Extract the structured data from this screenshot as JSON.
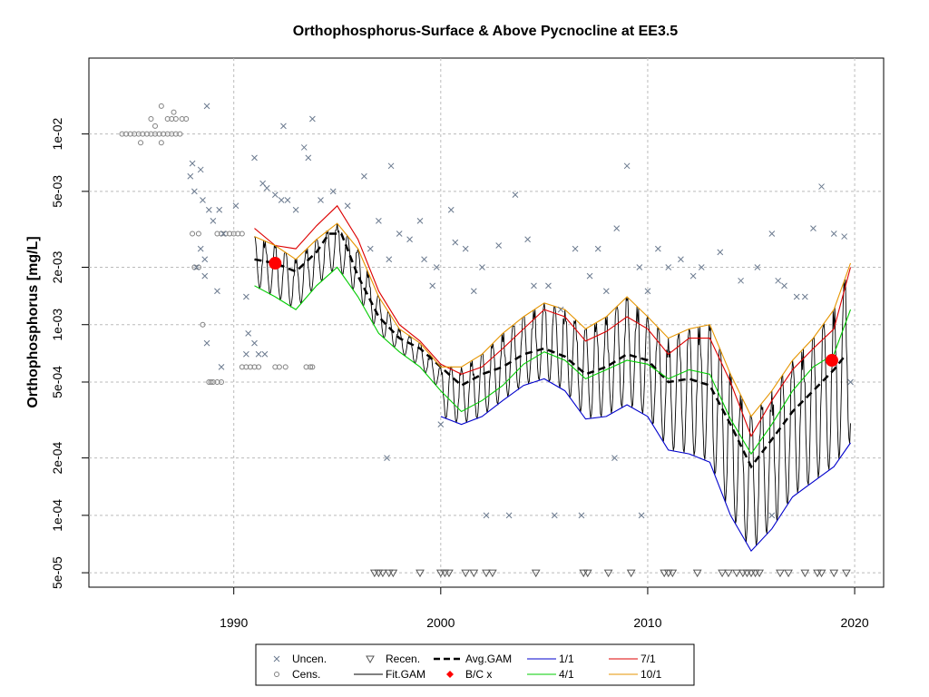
{
  "chart_data": {
    "type": "scatter",
    "title": "Orthophosphorus-Surface & Above Pycnocline at EE3.5",
    "ylabel": "Orthophosphorus [mg/L]",
    "xlabel": "",
    "x_ticks": [
      "1990",
      "2000",
      "2010",
      "2020"
    ],
    "y_ticks": [
      "5e-05",
      "1e-04",
      "2e-04",
      "5e-04",
      "1e-03",
      "2e-03",
      "5e-03",
      "1e-02"
    ],
    "y_scale": "log",
    "xlim": [
      1983.0,
      2021.4
    ],
    "ylim": [
      4.2e-05,
      0.025
    ],
    "grid": true,
    "legend_position": "bottom",
    "legend": [
      {
        "label": "Uncen.",
        "symbol": "x",
        "color": "#6b7a8f"
      },
      {
        "label": "Cens.",
        "symbol": "circle",
        "color": "#808080"
      },
      {
        "label": "Recen.",
        "symbol": "triangle-down",
        "color": "#555555"
      },
      {
        "label": "Fit.GAM",
        "symbol": "line",
        "color": "#000000"
      },
      {
        "label": "Avg.GAM",
        "symbol": "dashed-line",
        "color": "#000000"
      },
      {
        "label": "B/C x",
        "symbol": "diamond",
        "color": "#ff0000"
      },
      {
        "label": "1/1",
        "symbol": "line",
        "color": "#0000cc"
      },
      {
        "label": "4/1",
        "symbol": "line",
        "color": "#00cc00"
      },
      {
        "label": "7/1",
        "symbol": "line",
        "color": "#dd0000"
      },
      {
        "label": "10/1",
        "symbol": "line",
        "color": "#e69500"
      }
    ],
    "bc_points": [
      {
        "x": 1992.0,
        "y": 0.0021
      },
      {
        "x": 2018.9,
        "y": 0.00065
      }
    ],
    "censored_points": [
      [
        1984.6,
        0.01
      ],
      [
        1984.8,
        0.01
      ],
      [
        1985.0,
        0.01
      ],
      [
        1985.2,
        0.01
      ],
      [
        1985.4,
        0.01
      ],
      [
        1985.6,
        0.01
      ],
      [
        1985.8,
        0.01
      ],
      [
        1986.0,
        0.01
      ],
      [
        1986.2,
        0.01
      ],
      [
        1986.4,
        0.01
      ],
      [
        1986.6,
        0.01
      ],
      [
        1986.8,
        0.01
      ],
      [
        1987.0,
        0.01
      ],
      [
        1987.2,
        0.01
      ],
      [
        1987.4,
        0.01
      ],
      [
        1985.5,
        0.009
      ],
      [
        1986.5,
        0.009
      ],
      [
        1986.2,
        0.011
      ],
      [
        1986.8,
        0.012
      ],
      [
        1987.0,
        0.012
      ],
      [
        1987.2,
        0.012
      ],
      [
        1987.5,
        0.012
      ],
      [
        1987.7,
        0.012
      ],
      [
        1986.0,
        0.012
      ],
      [
        1986.5,
        0.014
      ],
      [
        1987.1,
        0.013
      ],
      [
        1988.0,
        0.003
      ],
      [
        1988.3,
        0.003
      ],
      [
        1989.2,
        0.003
      ],
      [
        1989.4,
        0.003
      ],
      [
        1989.6,
        0.003
      ],
      [
        1989.8,
        0.003
      ],
      [
        1990.0,
        0.003
      ],
      [
        1990.2,
        0.003
      ],
      [
        1990.4,
        0.003
      ],
      [
        1988.1,
        0.002
      ],
      [
        1988.3,
        0.002
      ],
      [
        1988.5,
        0.001
      ],
      [
        1988.8,
        0.0005
      ],
      [
        1989.0,
        0.0005
      ],
      [
        1989.2,
        0.0005
      ],
      [
        1989.4,
        0.0005
      ],
      [
        1988.9,
        0.0005
      ],
      [
        1990.4,
        0.0006
      ],
      [
        1990.6,
        0.0006
      ],
      [
        1990.8,
        0.0006
      ],
      [
        1991.0,
        0.0006
      ],
      [
        1991.2,
        0.0006
      ],
      [
        1992.0,
        0.0006
      ],
      [
        1992.2,
        0.0006
      ],
      [
        1992.5,
        0.0006
      ],
      [
        1993.5,
        0.0006
      ],
      [
        1993.7,
        0.0006
      ],
      [
        1993.8,
        0.0006
      ]
    ],
    "uncensored_points": [
      [
        1988.7,
        0.014
      ],
      [
        1993.8,
        0.012
      ],
      [
        1992.4,
        0.011
      ],
      [
        1988.0,
        0.007
      ],
      [
        1988.4,
        0.0065
      ],
      [
        1991.0,
        0.0075
      ],
      [
        1991.4,
        0.0055
      ],
      [
        1991.6,
        0.0052
      ],
      [
        1992.0,
        0.0048
      ],
      [
        1992.3,
        0.0045
      ],
      [
        1992.6,
        0.0045
      ],
      [
        1993.0,
        0.004
      ],
      [
        1993.4,
        0.0085
      ],
      [
        1993.6,
        0.0075
      ],
      [
        1994.2,
        0.0045
      ],
      [
        1997.6,
        0.0068
      ],
      [
        1994.8,
        0.005
      ],
      [
        1995.5,
        0.0042
      ],
      [
        1996.3,
        0.006
      ],
      [
        1987.9,
        0.006
      ],
      [
        1988.1,
        0.005
      ],
      [
        1988.5,
        0.0045
      ],
      [
        1988.8,
        0.004
      ],
      [
        1989.0,
        0.0035
      ],
      [
        1989.3,
        0.004
      ],
      [
        1989.5,
        0.003
      ],
      [
        1990.1,
        0.0042
      ],
      [
        1988.4,
        0.0025
      ],
      [
        1988.6,
        0.0022
      ],
      [
        1988.2,
        0.002
      ],
      [
        1988.6,
        0.0018
      ],
      [
        1989.2,
        0.0015
      ],
      [
        1989.4,
        0.0006
      ],
      [
        1988.7,
        0.0008
      ],
      [
        1990.6,
        0.0014
      ],
      [
        1990.7,
        0.0009
      ],
      [
        1991.0,
        0.0008
      ],
      [
        1991.2,
        0.0007
      ],
      [
        1991.5,
        0.0007
      ],
      [
        1990.6,
        0.0007
      ],
      [
        1996.6,
        0.0025
      ],
      [
        1997.0,
        0.0035
      ],
      [
        1997.5,
        0.0022
      ],
      [
        1998.0,
        0.003
      ],
      [
        1998.5,
        0.0028
      ],
      [
        1999.0,
        0.0035
      ],
      [
        1999.2,
        0.0022
      ],
      [
        1999.6,
        0.0016
      ],
      [
        1999.8,
        0.002
      ],
      [
        2000.5,
        0.004
      ],
      [
        2000.7,
        0.0027
      ],
      [
        2001.2,
        0.0025
      ],
      [
        2001.6,
        0.0015
      ],
      [
        2002.0,
        0.002
      ],
      [
        2002.8,
        0.0026
      ],
      [
        2003.6,
        0.0048
      ],
      [
        2004.2,
        0.0028
      ],
      [
        2004.5,
        0.0016
      ],
      [
        2005.2,
        0.0016
      ],
      [
        2005.8,
        0.0012
      ],
      [
        2006.5,
        0.0025
      ],
      [
        2007.2,
        0.0018
      ],
      [
        2007.6,
        0.0025
      ],
      [
        2008.0,
        0.0015
      ],
      [
        2008.5,
        0.0032
      ],
      [
        2009.0,
        0.0068
      ],
      [
        2009.6,
        0.002
      ],
      [
        2010.0,
        0.0015
      ],
      [
        2010.5,
        0.0025
      ],
      [
        2011.0,
        0.002
      ],
      [
        2011.6,
        0.0022
      ],
      [
        2012.2,
        0.0018
      ],
      [
        2012.6,
        0.002
      ],
      [
        2013.5,
        0.0024
      ],
      [
        2014.5,
        0.0017
      ],
      [
        2015.3,
        0.002
      ],
      [
        2016.0,
        0.003
      ],
      [
        2016.3,
        0.0017
      ],
      [
        2016.6,
        0.0016
      ],
      [
        2017.2,
        0.0014
      ],
      [
        2017.6,
        0.0014
      ],
      [
        2018.0,
        0.0032
      ],
      [
        2018.4,
        0.0053
      ],
      [
        2019.0,
        0.003
      ],
      [
        2019.5,
        0.0029
      ],
      [
        2019.8,
        0.0005
      ],
      [
        1997.4,
        0.0002
      ],
      [
        2000.0,
        0.0003
      ],
      [
        2002.2,
        0.0001
      ],
      [
        2003.3,
        0.0001
      ],
      [
        2005.5,
        0.0001
      ],
      [
        2006.8,
        0.0001
      ],
      [
        2008.4,
        0.0002
      ],
      [
        2009.7,
        0.0001
      ],
      [
        2016.0,
        0.0001
      ]
    ],
    "recensored_points": [
      [
        1996.8,
        5e-05
      ],
      [
        1997.0,
        5e-05
      ],
      [
        1997.2,
        5e-05
      ],
      [
        1997.5,
        5e-05
      ],
      [
        1997.7,
        5e-05
      ],
      [
        1999.0,
        5e-05
      ],
      [
        2000.0,
        5e-05
      ],
      [
        2000.2,
        5e-05
      ],
      [
        2000.4,
        5e-05
      ],
      [
        2001.2,
        5e-05
      ],
      [
        2001.6,
        5e-05
      ],
      [
        2002.2,
        5e-05
      ],
      [
        2002.5,
        5e-05
      ],
      [
        2004.6,
        5e-05
      ],
      [
        2006.9,
        5e-05
      ],
      [
        2007.1,
        5e-05
      ],
      [
        2008.1,
        5e-05
      ],
      [
        2009.2,
        5e-05
      ],
      [
        2010.8,
        5e-05
      ],
      [
        2011.0,
        5e-05
      ],
      [
        2011.2,
        5e-05
      ],
      [
        2012.4,
        5e-05
      ],
      [
        2013.6,
        5e-05
      ],
      [
        2013.9,
        5e-05
      ],
      [
        2014.3,
        5e-05
      ],
      [
        2014.6,
        5e-05
      ],
      [
        2014.8,
        5e-05
      ],
      [
        2015.0,
        5e-05
      ],
      [
        2015.2,
        5e-05
      ],
      [
        2015.4,
        5e-05
      ],
      [
        2016.4,
        5e-05
      ],
      [
        2016.8,
        5e-05
      ],
      [
        2017.6,
        5e-05
      ],
      [
        2018.2,
        5e-05
      ],
      [
        2018.4,
        5e-05
      ],
      [
        2019.0,
        5e-05
      ],
      [
        2019.6,
        5e-05
      ]
    ],
    "series": [
      {
        "name": "Avg.GAM",
        "color": "#000000",
        "dash": true,
        "x": [
          1991.0,
          1992.0,
          1993.0,
          1994.0,
          1994.6,
          1995.2,
          1996.0,
          1997.0,
          1998.0,
          1999.0,
          2000.0,
          2001.0,
          2002.0,
          2003.0,
          2004.0,
          2005.0,
          2006.0,
          2007.0,
          2008.0,
          2009.0,
          2010.0,
          2011.0,
          2012.0,
          2013.0,
          2014.0,
          2015.0,
          2016.0,
          2017.0,
          2018.0,
          2019.0,
          2019.5
        ],
        "y": [
          0.0022,
          0.0021,
          0.0019,
          0.0024,
          0.003,
          0.003,
          0.0018,
          0.0011,
          0.00085,
          0.00075,
          0.0006,
          0.00048,
          0.00055,
          0.0006,
          0.0007,
          0.00075,
          0.00068,
          0.00055,
          0.0006,
          0.0007,
          0.00065,
          0.0005,
          0.00052,
          0.00048,
          0.0003,
          0.00018,
          0.00025,
          0.00035,
          0.00045,
          0.00058,
          0.00068
        ]
      },
      {
        "name": "1/1",
        "color": "#0000cc",
        "x": [
          2000.0,
          2001.0,
          2002.0,
          2003.0,
          2004.0,
          2005.0,
          2006.0,
          2007.0,
          2008.0,
          2009.0,
          2010.0,
          2011.0,
          2012.0,
          2013.0,
          2014.0,
          2015.0,
          2016.0,
          2017.0,
          2018.0,
          2019.0,
          2019.8
        ],
        "y": [
          0.00033,
          0.0003,
          0.00033,
          0.0004,
          0.00048,
          0.00052,
          0.00045,
          0.00032,
          0.00033,
          0.00038,
          0.00033,
          0.00022,
          0.00021,
          0.00019,
          0.0001,
          6.5e-05,
          8.5e-05,
          0.000125,
          0.00015,
          0.00018,
          0.00024
        ]
      },
      {
        "name": "4/1",
        "color": "#00cc00",
        "x": [
          1991.0,
          1992.0,
          1993.0,
          1994.0,
          1995.0,
          1996.0,
          1997.0,
          1998.0,
          1999.0,
          2000.0,
          2001.0,
          2002.0,
          2003.0,
          2004.0,
          2005.0,
          2006.0,
          2007.0,
          2008.0,
          2009.0,
          2010.0,
          2011.0,
          2012.0,
          2013.0,
          2014.0,
          2015.0,
          2016.0,
          2017.0,
          2018.0,
          2019.0,
          2019.8
        ],
        "y": [
          0.0016,
          0.0014,
          0.0012,
          0.0016,
          0.002,
          0.0014,
          0.0009,
          0.00072,
          0.0006,
          0.00045,
          0.00035,
          0.0004,
          0.00048,
          0.00062,
          0.00072,
          0.00065,
          0.00052,
          0.00058,
          0.00065,
          0.00062,
          0.00052,
          0.00058,
          0.00055,
          0.00032,
          0.00021,
          0.0003,
          0.00045,
          0.0006,
          0.0007,
          0.0012
        ]
      },
      {
        "name": "7/1",
        "color": "#dd0000",
        "x": [
          1991.0,
          1992.0,
          1993.0,
          1994.0,
          1995.0,
          1996.0,
          1997.0,
          1998.0,
          1999.0,
          2000.0,
          2001.0,
          2002.0,
          2003.0,
          2004.0,
          2005.0,
          2006.0,
          2007.0,
          2008.0,
          2009.0,
          2010.0,
          2011.0,
          2012.0,
          2013.0,
          2014.0,
          2015.0,
          2016.0,
          2017.0,
          2018.0,
          2019.0,
          2019.8
        ],
        "y": [
          0.0032,
          0.0026,
          0.0025,
          0.0033,
          0.0042,
          0.0028,
          0.0015,
          0.001,
          0.00082,
          0.00062,
          0.00055,
          0.0006,
          0.00075,
          0.00095,
          0.0012,
          0.0011,
          0.00082,
          0.00092,
          0.0011,
          0.00095,
          0.0007,
          0.00085,
          0.00085,
          0.0005,
          0.00026,
          0.0004,
          0.00058,
          0.00075,
          0.00095,
          0.002
        ]
      },
      {
        "name": "10/1",
        "color": "#e69500",
        "x": [
          1991.0,
          1992.0,
          1993.0,
          1994.0,
          1995.0,
          1996.0,
          1997.0,
          1998.0,
          1999.0,
          2000.0,
          2001.0,
          2002.0,
          2003.0,
          2004.0,
          2005.0,
          2006.0,
          2007.0,
          2008.0,
          2009.0,
          2010.0,
          2011.0,
          2012.0,
          2013.0,
          2014.0,
          2015.0,
          2016.0,
          2017.0,
          2018.0,
          2019.0,
          2019.8
        ],
        "y": [
          0.0029,
          0.0026,
          0.0022,
          0.0028,
          0.0034,
          0.0025,
          0.0014,
          0.00095,
          0.0008,
          0.0006,
          0.0006,
          0.0007,
          0.0009,
          0.0011,
          0.0013,
          0.0012,
          0.00095,
          0.0011,
          0.0014,
          0.0011,
          0.00085,
          0.00095,
          0.001,
          0.00055,
          0.00033,
          0.00045,
          0.00065,
          0.00085,
          0.0012,
          0.0021
        ]
      }
    ],
    "fit_gam_envelope": {
      "name": "Fit.GAM",
      "color": "#000000",
      "x_start": 1991.0,
      "x_end": 2019.8,
      "note": "seasonal oscillation between 1/1 and 10/1 curves"
    }
  }
}
